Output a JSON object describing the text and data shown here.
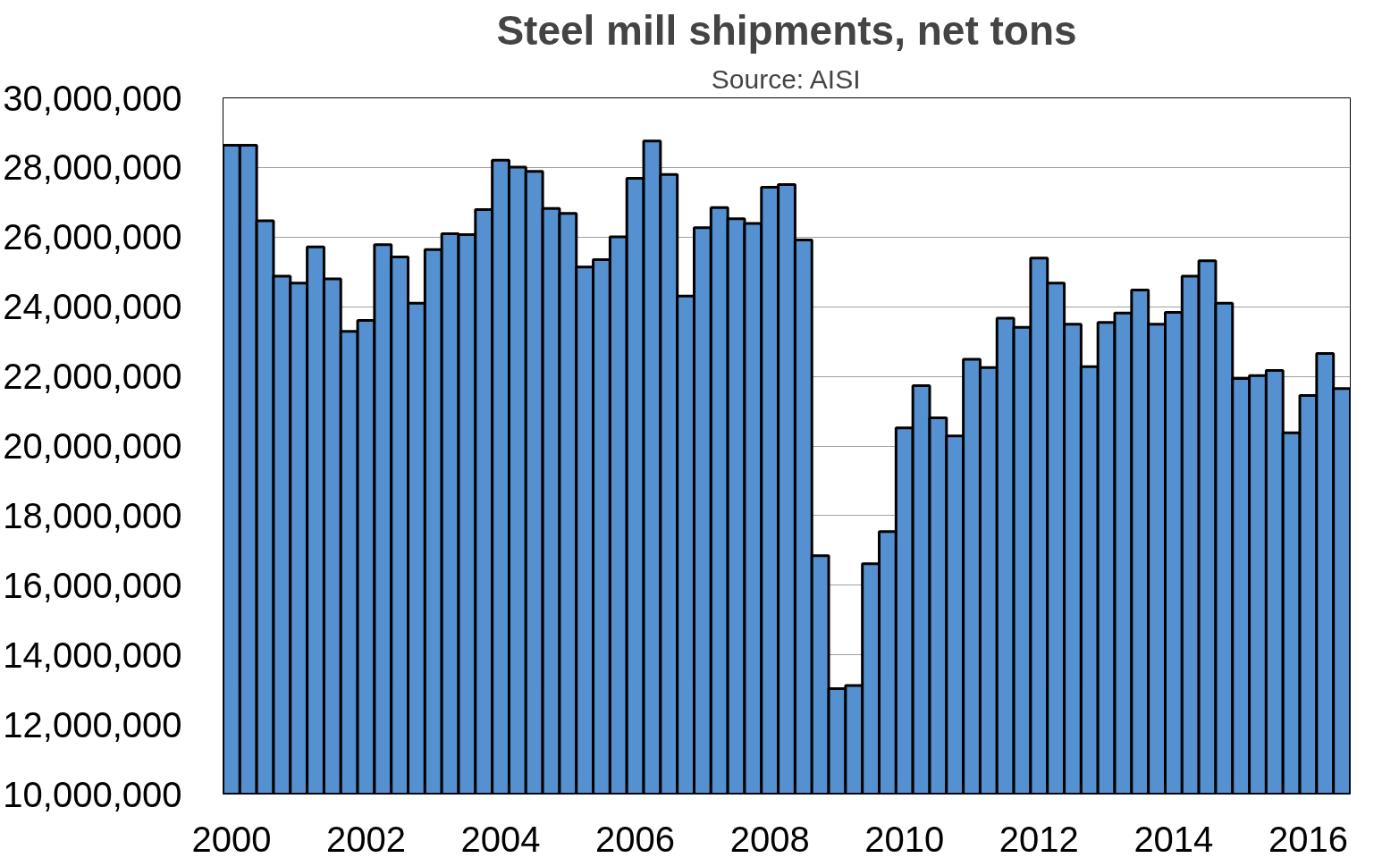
{
  "chart_data": {
    "type": "bar",
    "title": "Steel mill shipments, net tons",
    "subtitle": "Source: AISI",
    "x": [
      2000,
      2000.25,
      2000.5,
      2000.75,
      2001,
      2001.25,
      2001.5,
      2001.75,
      2002,
      2002.25,
      2002.5,
      2002.75,
      2003,
      2003.25,
      2003.5,
      2003.75,
      2004,
      2004.25,
      2004.5,
      2004.75,
      2005,
      2005.25,
      2005.5,
      2005.75,
      2006,
      2006.25,
      2006.5,
      2006.75,
      2007,
      2007.25,
      2007.5,
      2007.75,
      2008,
      2008.25,
      2008.5,
      2008.75,
      2009,
      2009.25,
      2009.5,
      2009.75,
      2010,
      2010.25,
      2010.5,
      2010.75,
      2011,
      2011.25,
      2011.5,
      2011.75,
      2012,
      2012.25,
      2012.5,
      2012.75,
      2013,
      2013.25,
      2013.5,
      2013.75,
      2014,
      2014.25,
      2014.5,
      2014.75,
      2015,
      2015.25,
      2015.5,
      2015.75,
      2016,
      2016.25,
      2016.5
    ],
    "values": [
      28640000,
      28640000,
      26470000,
      24880000,
      24680000,
      25720000,
      24800000,
      23290000,
      23610000,
      25780000,
      25430000,
      24100000,
      25640000,
      26100000,
      26070000,
      26790000,
      28210000,
      28010000,
      27890000,
      26820000,
      26680000,
      25140000,
      25350000,
      26010000,
      27690000,
      28760000,
      27800000,
      24310000,
      26270000,
      26850000,
      26530000,
      26390000,
      27430000,
      27510000,
      25920000,
      16850000,
      13030000,
      13120000,
      16620000,
      17540000,
      20520000,
      21730000,
      20810000,
      20290000,
      22490000,
      22250000,
      23670000,
      23410000,
      25400000,
      24680000,
      23500000,
      22280000,
      23550000,
      23820000,
      24480000,
      23500000,
      23840000,
      24880000,
      25320000,
      24100000,
      21940000,
      22020000,
      22170000,
      20380000,
      21450000,
      22660000,
      21650000
    ],
    "color": "#5591d0",
    "xlim": [
      1999.875,
      2016.625
    ],
    "xticks": [
      2000,
      2002,
      2004,
      2006,
      2008,
      2010,
      2012,
      2014,
      2016
    ],
    "ylim": [
      10000000,
      30000000
    ],
    "yticks": [
      {
        "value": 10000000,
        "label": "10,000,000"
      },
      {
        "value": 12000000,
        "label": "12,000,000"
      },
      {
        "value": 14000000,
        "label": "14,000,000"
      },
      {
        "value": 16000000,
        "label": "16,000,000"
      },
      {
        "value": 18000000,
        "label": "18,000,000"
      },
      {
        "value": 20000000,
        "label": "20,000,000"
      },
      {
        "value": 22000000,
        "label": "22,000,000"
      },
      {
        "value": 24000000,
        "label": "24,000,000"
      },
      {
        "value": 26000000,
        "label": "26,000,000"
      },
      {
        "value": 28000000,
        "label": "28,000,000"
      },
      {
        "value": 30000000,
        "label": "30,000,000"
      }
    ],
    "grid": "y"
  }
}
